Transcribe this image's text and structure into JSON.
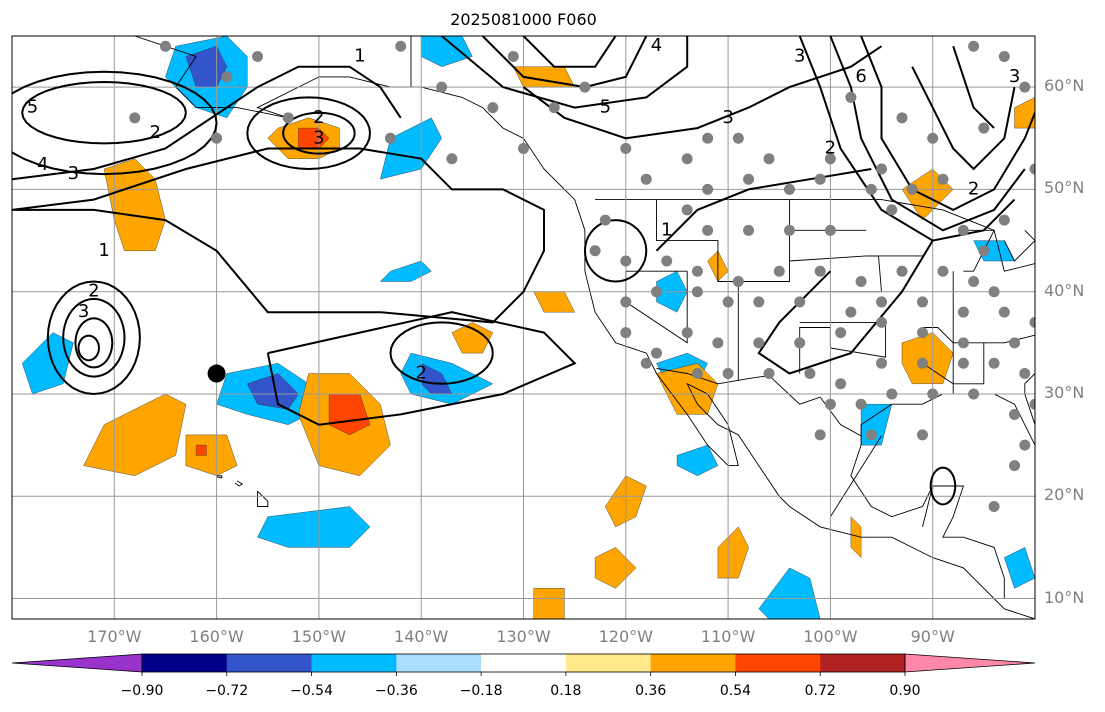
{
  "title": "2025081000 F060",
  "map": {
    "projection": "PlateCarree",
    "extent_lon": [
      -180,
      -80
    ],
    "extent_lat": [
      8,
      65
    ],
    "lat_labels": [
      {
        "lat": 60,
        "text": "60°N"
      },
      {
        "lat": 50,
        "text": "50°N"
      },
      {
        "lat": 40,
        "text": "40°N"
      },
      {
        "lat": 30,
        "text": "30°N"
      },
      {
        "lat": 20,
        "text": "20°N"
      },
      {
        "lat": 10,
        "text": "10°N"
      }
    ],
    "lon_labels": [
      {
        "lon": -170,
        "text": "170°W"
      },
      {
        "lon": -160,
        "text": "160°W"
      },
      {
        "lon": -150,
        "text": "150°W"
      },
      {
        "lon": -140,
        "text": "140°W"
      },
      {
        "lon": -130,
        "text": "130°W"
      },
      {
        "lon": -120,
        "text": "120°W"
      },
      {
        "lon": -110,
        "text": "110°W"
      },
      {
        "lon": -100,
        "text": "100°W"
      },
      {
        "lon": -90,
        "text": "90°W"
      }
    ],
    "gridline_color": "#999999",
    "contour_labels": [
      {
        "text": "5",
        "lon": -178,
        "lat": 58
      },
      {
        "text": "4",
        "lon": -177,
        "lat": 52.4
      },
      {
        "text": "3",
        "lon": -174,
        "lat": 51.5
      },
      {
        "text": "2",
        "lon": -166,
        "lat": 55.5
      },
      {
        "text": "1",
        "lon": -171,
        "lat": 44
      },
      {
        "text": "2",
        "lon": -172,
        "lat": 40
      },
      {
        "text": "3",
        "lon": -173,
        "lat": 38
      },
      {
        "text": "2",
        "lon": -150,
        "lat": 57
      },
      {
        "text": "3",
        "lon": -150,
        "lat": 55
      },
      {
        "text": "1",
        "lon": -146,
        "lat": 63
      },
      {
        "text": "5",
        "lon": -122,
        "lat": 58
      },
      {
        "text": "4",
        "lon": -117,
        "lat": 64
      },
      {
        "text": "3",
        "lon": -110,
        "lat": 57
      },
      {
        "text": "3",
        "lon": -103,
        "lat": 63
      },
      {
        "text": "6",
        "lon": -97,
        "lat": 61
      },
      {
        "text": "2",
        "lon": -100,
        "lat": 54
      },
      {
        "text": "2",
        "lon": -86,
        "lat": 50
      },
      {
        "text": "1",
        "lon": -116,
        "lat": 46
      },
      {
        "text": "2",
        "lon": -140,
        "lat": 32
      },
      {
        "text": "3",
        "lon": -82,
        "lat": 61
      }
    ],
    "marker": {
      "lon": -160,
      "lat": 32,
      "color": "#000000"
    },
    "station_color": "#808080",
    "stations": [
      [
        -165,
        64
      ],
      [
        -159,
        61
      ],
      [
        -156,
        63
      ],
      [
        -142,
        64
      ],
      [
        -138,
        60
      ],
      [
        -131,
        63
      ],
      [
        -124,
        60
      ],
      [
        -127,
        58
      ],
      [
        -133,
        58
      ],
      [
        -168,
        57
      ],
      [
        -160,
        55
      ],
      [
        -153,
        57
      ],
      [
        -143,
        55
      ],
      [
        -137,
        53
      ],
      [
        -130,
        54
      ],
      [
        -120,
        54
      ],
      [
        -112,
        55
      ],
      [
        -109,
        55
      ],
      [
        -114,
        53
      ],
      [
        -106,
        53
      ],
      [
        -100,
        53
      ],
      [
        -95,
        52
      ],
      [
        -90,
        55
      ],
      [
        -85,
        56
      ],
      [
        -98,
        59
      ],
      [
        -93,
        57
      ],
      [
        -86,
        64
      ],
      [
        -83,
        63
      ],
      [
        -81,
        60
      ],
      [
        -80,
        52
      ],
      [
        -83,
        47
      ],
      [
        -85,
        44
      ],
      [
        -87,
        46
      ],
      [
        -89,
        51
      ],
      [
        -92,
        50
      ],
      [
        -96,
        50
      ],
      [
        -94,
        48
      ],
      [
        -101,
        51
      ],
      [
        -104,
        50
      ],
      [
        -108,
        51
      ],
      [
        -112,
        50
      ],
      [
        -118,
        51
      ],
      [
        -114,
        48
      ],
      [
        -112,
        46
      ],
      [
        -108,
        46
      ],
      [
        -104,
        46
      ],
      [
        -100,
        46
      ],
      [
        -122,
        47
      ],
      [
        -123,
        44
      ],
      [
        -120,
        43
      ],
      [
        -116,
        43
      ],
      [
        -113,
        42
      ],
      [
        -109,
        41
      ],
      [
        -105,
        42
      ],
      [
        -101,
        42
      ],
      [
        -97,
        41
      ],
      [
        -93,
        42
      ],
      [
        -89,
        42
      ],
      [
        -86,
        41
      ],
      [
        -84,
        40
      ],
      [
        -120,
        39
      ],
      [
        -117,
        40
      ],
      [
        -113,
        40
      ],
      [
        -110,
        39
      ],
      [
        -107,
        39
      ],
      [
        -103,
        39
      ],
      [
        -98,
        38
      ],
      [
        -95,
        39
      ],
      [
        -91,
        39
      ],
      [
        -87,
        38
      ],
      [
        -83,
        38
      ],
      [
        -120,
        36
      ],
      [
        -117,
        34
      ],
      [
        -114,
        36
      ],
      [
        -111,
        35
      ],
      [
        -107,
        35
      ],
      [
        -103,
        35
      ],
      [
        -99,
        36
      ],
      [
        -95,
        37
      ],
      [
        -91,
        36
      ],
      [
        -87,
        35
      ],
      [
        -82,
        35
      ],
      [
        -80,
        37
      ],
      [
        -118,
        33
      ],
      [
        -113,
        32
      ],
      [
        -110,
        32
      ],
      [
        -106,
        32
      ],
      [
        -102,
        32
      ],
      [
        -99,
        31
      ],
      [
        -95,
        33
      ],
      [
        -91,
        33
      ],
      [
        -87,
        33
      ],
      [
        -84,
        33
      ],
      [
        -81,
        32
      ],
      [
        -80,
        29
      ],
      [
        -97,
        29
      ],
      [
        -94,
        30
      ],
      [
        -90,
        30
      ],
      [
        -86,
        30
      ],
      [
        -82,
        28
      ],
      [
        -81,
        25
      ],
      [
        -82,
        23
      ],
      [
        -96,
        26
      ],
      [
        -91,
        26
      ],
      [
        -84,
        19
      ],
      [
        -101,
        26
      ],
      [
        -100,
        29
      ]
    ],
    "colorbar": {
      "levels": [
        -0.9,
        -0.72,
        -0.54,
        -0.36,
        -0.18,
        0.18,
        0.36,
        0.54,
        0.72,
        0.9
      ],
      "tick_labels": [
        "−0.90",
        "−0.72",
        "−0.54",
        "−0.36",
        "−0.18",
        "0.18",
        "0.36",
        "0.54",
        "0.72",
        "0.90"
      ],
      "colors": [
        "#9933cc",
        "#000088",
        "#3355cc",
        "#00bbff",
        "#aaddff",
        "#ffffff",
        "#ffe98a",
        "#ffa500",
        "#ff4500",
        "#b22222",
        "#ff88aa"
      ]
    }
  }
}
